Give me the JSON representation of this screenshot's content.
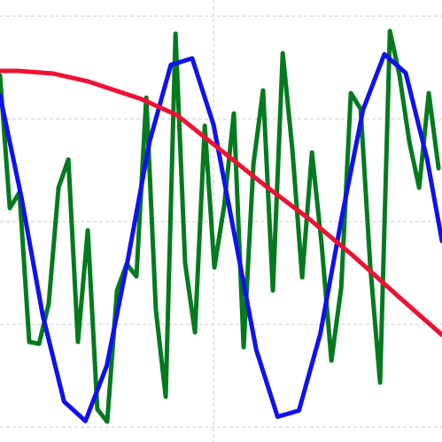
{
  "chart_data": {
    "type": "line",
    "xlim": [
      0,
      2.07
    ],
    "xticks": [
      1
    ],
    "ylim": [
      -1.073,
      1.078
    ],
    "yticks": [
      -1,
      -0.5,
      0,
      0.5,
      1
    ],
    "grid": true,
    "series": [
      {
        "color": "#047a1f",
        "x": [
          0,
          0.046,
          0.091,
          0.137,
          0.183,
          0.228,
          0.274,
          0.32,
          0.365,
          0.411,
          0.456,
          0.502,
          0.548,
          0.593,
          0.639,
          0.685,
          0.73,
          0.776,
          0.822,
          0.867,
          0.913,
          0.959,
          1.004,
          1.05,
          1.095,
          1.141,
          1.187,
          1.232,
          1.278,
          1.324,
          1.369,
          1.415,
          1.461,
          1.506,
          1.552,
          1.598,
          1.643,
          1.689,
          1.734,
          1.78,
          1.826,
          1.871,
          1.917,
          1.963,
          2.008,
          2.054
        ],
        "values": [
          0.711,
          0.065,
          0.142,
          -0.586,
          -0.595,
          -0.401,
          0.164,
          0.302,
          -0.586,
          -0.043,
          -0.914,
          -0.974,
          -0.336,
          -0.207,
          -0.267,
          0.603,
          -0.431,
          -0.853,
          0.914,
          -0.203,
          -0.539,
          0.466,
          -0.224,
          0.078,
          0.526,
          -0.612,
          0.28,
          0.638,
          -0.336,
          0.819,
          0.353,
          -0.272,
          0.336,
          -0.108,
          -0.677,
          -0.323,
          0.625,
          0.547,
          -0.216,
          -0.784,
          0.927,
          0.711,
          0.388,
          0.164,
          0.625,
          0.259
        ]
      },
      {
        "color": "#1111ee",
        "x": [
          0,
          0.1,
          0.2,
          0.3,
          0.4,
          0.5,
          0.6,
          0.7,
          0.8,
          0.9,
          1.0,
          1.1,
          1.2,
          1.3,
          1.4,
          1.5,
          1.6,
          1.7,
          1.8,
          1.9,
          2.0,
          2.07
        ],
        "values": [
          0.613,
          0.119,
          -0.456,
          -0.876,
          -0.971,
          -0.702,
          -0.178,
          0.387,
          0.762,
          0.794,
          0.471,
          -0.075,
          -0.624,
          -0.95,
          -0.92,
          -0.547,
          0.017,
          0.543,
          0.814,
          0.723,
          0.305,
          -0.095
        ]
      },
      {
        "color": "#ee1133",
        "x": [
          0,
          0.083,
          0.249,
          0.415,
          0.664,
          0.83,
          1.037,
          1.245,
          1.452,
          1.66,
          1.867,
          2.07
        ],
        "values": [
          0.733,
          0.733,
          0.72,
          0.681,
          0.595,
          0.517,
          0.345,
          0.172,
          0.009,
          -0.172,
          -0.366,
          -0.552
        ]
      }
    ]
  }
}
